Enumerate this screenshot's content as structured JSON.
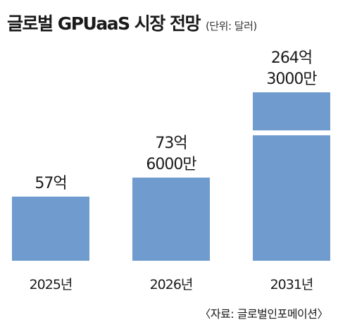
{
  "chart_data": {
    "type": "bar",
    "title": "글로벌 GPUaaS 시장 전망",
    "unit": "(단위: 달러)",
    "categories": [
      "2025년",
      "2026년",
      "2031년"
    ],
    "values": [
      5700000000,
      7360000000,
      26430000000
    ],
    "value_labels": [
      [
        "57억"
      ],
      [
        "73억",
        "6000만"
      ],
      [
        "264억",
        "3000만"
      ]
    ],
    "axis_break": true,
    "bar_color": "#6f9bce",
    "source": "〈자료: 글로벌인포메이션〉"
  }
}
